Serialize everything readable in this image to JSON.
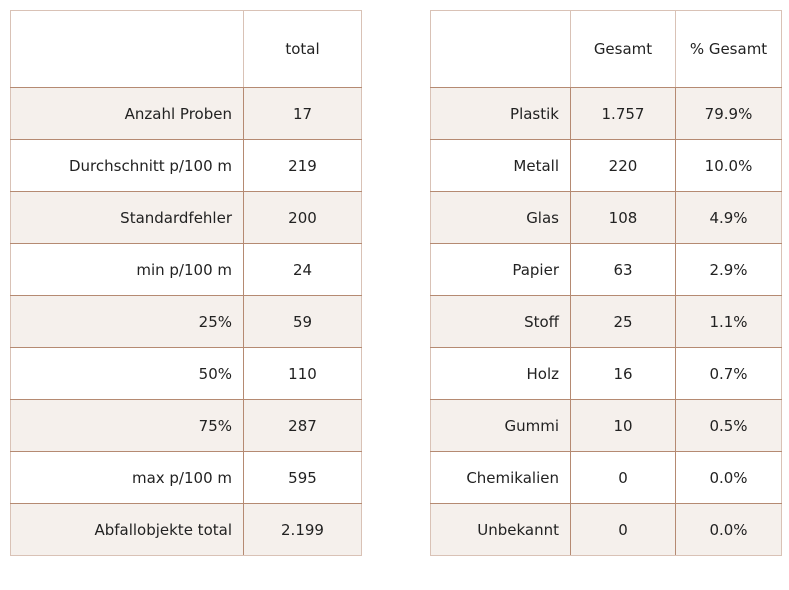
{
  "chart_data": [
    {
      "type": "table",
      "columns": [
        "",
        "total"
      ],
      "rows": [
        {
          "label": "Anzahl Proben",
          "total": "17"
        },
        {
          "label": "Durchschnitt p/100 m",
          "total": "219"
        },
        {
          "label": "Standardfehler",
          "total": "200"
        },
        {
          "label": "min p/100 m",
          "total": "24"
        },
        {
          "label": "25%",
          "total": "59"
        },
        {
          "label": "50%",
          "total": "110"
        },
        {
          "label": "75%",
          "total": "287"
        },
        {
          "label": "max p/100 m",
          "total": "595"
        },
        {
          "label": "Abfallobjekte total",
          "total": "2.199"
        }
      ]
    },
    {
      "type": "table",
      "columns": [
        "",
        "Gesamt",
        "% Gesamt"
      ],
      "rows": [
        {
          "label": "Plastik",
          "gesamt": "1.757",
          "pct": "79.9%"
        },
        {
          "label": "Metall",
          "gesamt": "220",
          "pct": "10.0%"
        },
        {
          "label": "Glas",
          "gesamt": "108",
          "pct": "4.9%"
        },
        {
          "label": "Papier",
          "gesamt": "63",
          "pct": "2.9%"
        },
        {
          "label": "Stoff",
          "gesamt": "25",
          "pct": "1.1%"
        },
        {
          "label": "Holz",
          "gesamt": "16",
          "pct": "0.7%"
        },
        {
          "label": "Gummi",
          "gesamt": "10",
          "pct": "0.5%"
        },
        {
          "label": "Chemikalien",
          "gesamt": "0",
          "pct": "0.0%"
        },
        {
          "label": "Unbekannt",
          "gesamt": "0",
          "pct": "0.0%"
        }
      ]
    }
  ],
  "colors": {
    "border": "#b58a72",
    "border_light": "#d9c2b6",
    "stripe": "#f5f0ec",
    "text": "#222222"
  }
}
